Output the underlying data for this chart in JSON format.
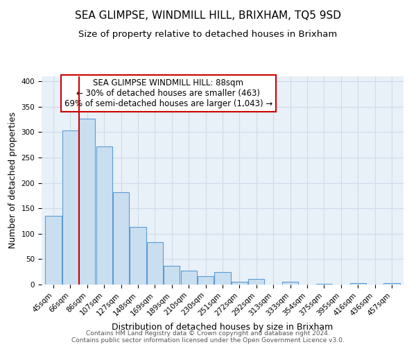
{
  "title": "SEA GLIMPSE, WINDMILL HILL, BRIXHAM, TQ5 9SD",
  "subtitle": "Size of property relative to detached houses in Brixham",
  "xlabel": "Distribution of detached houses by size in Brixham",
  "ylabel": "Number of detached properties",
  "bin_labels": [
    "45sqm",
    "66sqm",
    "86sqm",
    "107sqm",
    "127sqm",
    "148sqm",
    "169sqm",
    "189sqm",
    "210sqm",
    "230sqm",
    "251sqm",
    "272sqm",
    "292sqm",
    "313sqm",
    "333sqm",
    "354sqm",
    "375sqm",
    "395sqm",
    "416sqm",
    "436sqm",
    "457sqm"
  ],
  "bar_heights": [
    135,
    303,
    327,
    272,
    182,
    113,
    83,
    37,
    27,
    17,
    25,
    5,
    11,
    0,
    5,
    0,
    2,
    0,
    3,
    0,
    3
  ],
  "bar_color": "#c9dff0",
  "bar_edge_color": "#5b9bd5",
  "highlight_x_label": "86sqm",
  "highlight_line_color": "#cc0000",
  "annotation_text_line1": "SEA GLIMPSE WINDMILL HILL: 88sqm",
  "annotation_text_line2": "← 30% of detached houses are smaller (463)",
  "annotation_text_line3": "69% of semi-detached houses are larger (1,043) →",
  "annotation_box_edge_color": "#cc0000",
  "ylim": [
    0,
    410
  ],
  "yticks": [
    0,
    50,
    100,
    150,
    200,
    250,
    300,
    350,
    400
  ],
  "footer_line1": "Contains HM Land Registry data © Crown copyright and database right 2024.",
  "footer_line2": "Contains public sector information licensed under the Open Government Licence v3.0.",
  "background_color": "#ffffff",
  "plot_bg_color": "#e8f0f8",
  "grid_color": "#d0dce8",
  "title_fontsize": 11,
  "subtitle_fontsize": 9.5,
  "axis_label_fontsize": 9,
  "tick_fontsize": 7.5,
  "annotation_fontsize": 8.5,
  "footer_fontsize": 6.5
}
